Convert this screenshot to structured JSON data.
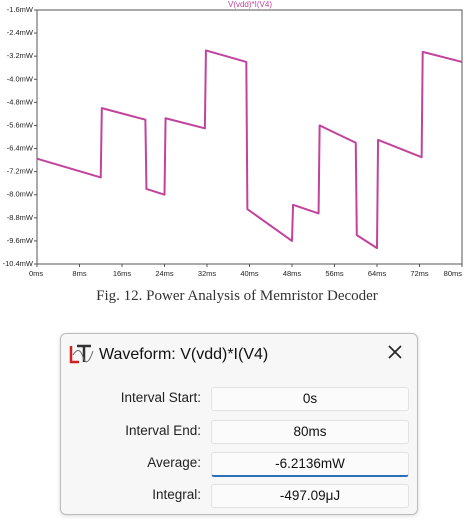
{
  "chart_data": {
    "type": "line",
    "title": "V(vdd)*I(V4)",
    "color": "#c2439b",
    "x": [
      0,
      12,
      12.2,
      20.4,
      20.6,
      24,
      24.2,
      31.6,
      31.8,
      39.4,
      39.6,
      48,
      48.2,
      53,
      53.2,
      60,
      60.2,
      64,
      64.2,
      72.4,
      72.6,
      80
    ],
    "values": [
      -6.75,
      -7.4,
      -5.0,
      -5.4,
      -7.8,
      -8.0,
      -5.35,
      -5.7,
      -3.0,
      -3.4,
      -8.5,
      -9.6,
      -8.35,
      -8.65,
      -5.6,
      -6.2,
      -9.4,
      -9.85,
      -6.1,
      -6.7,
      -3.05,
      -3.4
    ],
    "xlim": [
      0,
      80
    ],
    "xticks": [
      {
        "value": 0,
        "label": "0ms"
      },
      {
        "value": 8,
        "label": "8ms"
      },
      {
        "value": 16,
        "label": "16ms"
      },
      {
        "value": 24,
        "label": "24ms"
      },
      {
        "value": 32,
        "label": "32ms"
      },
      {
        "value": 40,
        "label": "40ms"
      },
      {
        "value": 48,
        "label": "48ms"
      },
      {
        "value": 56,
        "label": "56ms"
      },
      {
        "value": 64,
        "label": "64ms"
      },
      {
        "value": 72,
        "label": "72ms"
      },
      {
        "value": 80,
        "label": "80ms"
      }
    ],
    "ylim": [
      -10.4,
      -1.6
    ],
    "yticks": [
      {
        "value": -1.6,
        "label": "-1.6mW"
      },
      {
        "value": -2.4,
        "label": "-2.4mW"
      },
      {
        "value": -3.2,
        "label": "-3.2mW"
      },
      {
        "value": -4.0,
        "label": "-4.0mW"
      },
      {
        "value": -4.8,
        "label": "-4.8mW"
      },
      {
        "value": -5.6,
        "label": "-5.6mW"
      },
      {
        "value": -6.4,
        "label": "-6.4mW"
      },
      {
        "value": -7.2,
        "label": "-7.2mW"
      },
      {
        "value": -8.0,
        "label": "-8.0mW"
      },
      {
        "value": -8.8,
        "label": "-8.8mW"
      },
      {
        "value": -9.6,
        "label": "-9.6mW"
      },
      {
        "value": -10.4,
        "label": "-10.4mW"
      }
    ]
  },
  "caption": "Fig. 12. Power Analysis of Memristor Decoder",
  "dialog": {
    "title": "Waveform: V(vdd)*I(V4)",
    "rows": [
      {
        "label": "Interval Start:",
        "value": "0s"
      },
      {
        "label": "Interval End:",
        "value": "80ms"
      },
      {
        "label": "Average:",
        "value": "-6.2136mW"
      },
      {
        "label": "Integral:",
        "value": "-497.09μJ"
      }
    ]
  }
}
